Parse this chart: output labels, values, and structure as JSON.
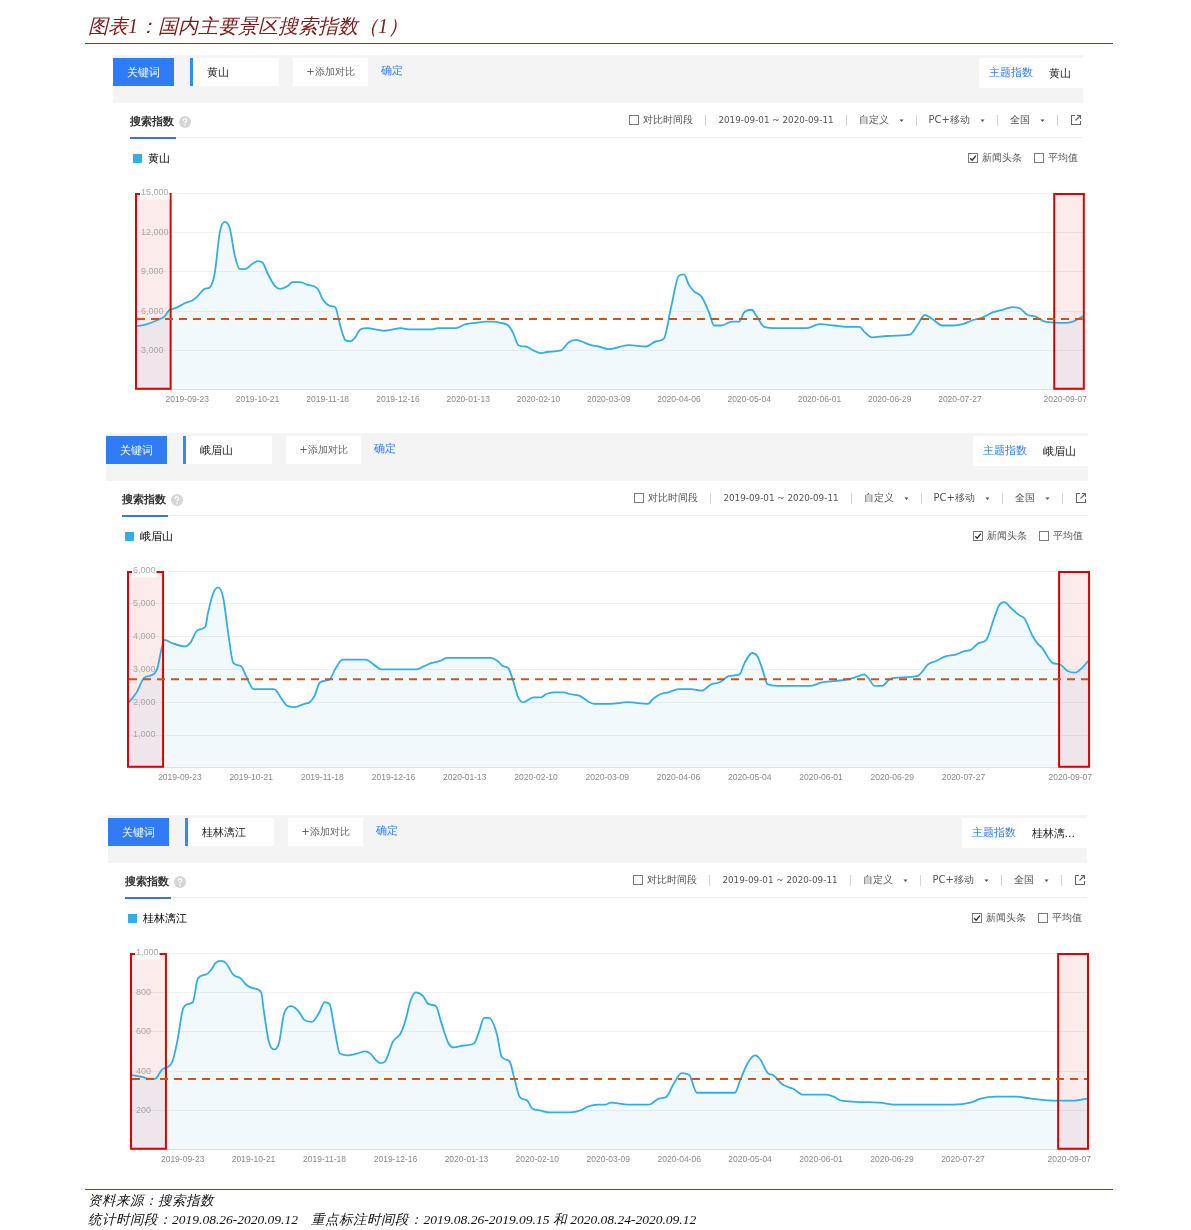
{
  "chart_data": [
    {
      "type": "other",
      "title": "图表1：国内主要景区搜索指数（1）"
    },
    {
      "type": "area",
      "title": "搜索指数",
      "annotations": [
        "关键词",
        "黄山",
        "+添加对比",
        "确定",
        "主题指数",
        "黄山",
        "对比时间段",
        "2019-09-01 ~ 2020-09-11",
        "自定义",
        "PC+移动",
        "全国",
        "新闻头条",
        "平均值"
      ],
      "series": [
        {
          "name": "黄山",
          "color": "#33aee3",
          "x": [
            "2019-09-03",
            "2019-09-07",
            "2019-09-11",
            "2019-09-14",
            "2019-09-16",
            "2019-09-18",
            "2019-09-22",
            "2019-09-25",
            "2019-09-27",
            "2019-09-30",
            "2019-10-02",
            "2019-10-04",
            "2019-10-06",
            "2019-10-08",
            "2019-10-10",
            "2019-10-12",
            "2019-10-14",
            "2019-10-16",
            "2019-10-19",
            "2019-10-21",
            "2019-10-23",
            "2019-10-25",
            "2019-10-28",
            "2019-10-30",
            "2019-11-02",
            "2019-11-04",
            "2019-11-07",
            "2019-11-10",
            "2019-11-14",
            "2019-11-16",
            "2019-11-19",
            "2019-11-21",
            "2019-11-23",
            "2019-11-25",
            "2019-11-27",
            "2019-11-29",
            "2019-12-01",
            "2019-12-04",
            "2019-12-07",
            "2019-12-11",
            "2019-12-14",
            "2019-12-17",
            "2019-12-21",
            "2019-12-25",
            "2019-12-29",
            "2020-01-01",
            "2020-01-08",
            "2020-01-12",
            "2020-01-16",
            "2020-01-20",
            "2020-01-23",
            "2020-01-26",
            "2020-01-29",
            "2020-01-31",
            "2020-02-02",
            "2020-02-05",
            "2020-02-08",
            "2020-02-11",
            "2020-02-14",
            "2020-02-19",
            "2020-02-22",
            "2020-02-25",
            "2020-02-27",
            "2020-03-02",
            "2020-03-05",
            "2020-03-09",
            "2020-03-17",
            "2020-03-24",
            "2020-03-28",
            "2020-03-31",
            "2020-04-03",
            "2020-04-06",
            "2020-04-08",
            "2020-04-10",
            "2020-04-12",
            "2020-04-15",
            "2020-04-18",
            "2020-04-20",
            "2020-04-23",
            "2020-04-27",
            "2020-04-30",
            "2020-05-02",
            "2020-05-05",
            "2020-05-07",
            "2020-05-10",
            "2020-05-15",
            "2020-05-27",
            "2020-06-01",
            "2020-06-07",
            "2020-06-12",
            "2020-06-17",
            "2020-06-19",
            "2020-06-22",
            "2020-06-28",
            "2020-07-07",
            "2020-07-10",
            "2020-07-13",
            "2020-07-16",
            "2020-07-20",
            "2020-07-24",
            "2020-07-28",
            "2020-08-01",
            "2020-08-05",
            "2020-08-09",
            "2020-08-13",
            "2020-08-17",
            "2020-08-20",
            "2020-08-23",
            "2020-08-26",
            "2020-08-30",
            "2020-09-07",
            "2020-09-10",
            "2020-09-14"
          ],
          "values": [
            4850,
            5000,
            5300,
            5600,
            6100,
            6200,
            6600,
            6800,
            7100,
            7700,
            7800,
            8900,
            12000,
            12800,
            12300,
            10200,
            9200,
            9200,
            9600,
            9800,
            9700,
            8900,
            7900,
            7700,
            7900,
            8200,
            8200,
            8000,
            7700,
            6900,
            6400,
            6300,
            4900,
            3800,
            3700,
            4000,
            4600,
            4700,
            4600,
            4500,
            4600,
            4700,
            4600,
            4600,
            4600,
            4700,
            4700,
            5000,
            5100,
            5200,
            5200,
            5100,
            4900,
            4300,
            3400,
            3300,
            3000,
            2800,
            2900,
            3000,
            3600,
            3800,
            3700,
            3400,
            3300,
            3100,
            3400,
            3300,
            3700,
            3900,
            6400,
            8700,
            8800,
            8000,
            7500,
            7100,
            5900,
            4900,
            4900,
            5200,
            5200,
            5900,
            6100,
            5600,
            4800,
            4700,
            4700,
            5000,
            4900,
            4800,
            4800,
            4400,
            4000,
            4100,
            4200,
            4900,
            5700,
            5400,
            4900,
            4900,
            5000,
            5300,
            5500,
            5900,
            6100,
            6300,
            6200,
            5700,
            5600,
            5200,
            5100,
            5200,
            5600
          ]
        }
      ],
      "xlim": [
        "2019-09-03",
        "2020-09-14"
      ],
      "xticks": [
        "2019-09-23",
        "2019-10-21",
        "2019-11-18",
        "2019-12-16",
        "2020-01-13",
        "2020-02-10",
        "2020-03-09",
        "2020-04-06",
        "2020-05-04",
        "2020-06-01",
        "2020-06-29",
        "2020-07-27",
        "2020-09-07"
      ],
      "ylim": [
        0,
        15000
      ],
      "yticks": [
        {
          "value": 3000,
          "label": "3,000"
        },
        {
          "value": 6000,
          "label": "6,000"
        },
        {
          "value": 9000,
          "label": "9,000"
        },
        {
          "value": 12000,
          "label": "12,000"
        },
        {
          "value": 15000,
          "label": "15,000"
        }
      ],
      "grid": "y",
      "legend": "top left",
      "ref_lines": [
        {
          "axis": "y",
          "value": 5400,
          "color": "#cc5414",
          "line_style": "dashed"
        }
      ],
      "bands": [
        {
          "axis": "x",
          "from": "2019-09-03",
          "to": "2019-09-16",
          "color": "#dd0000"
        },
        {
          "axis": "x",
          "from": "2020-09-03",
          "to": "2020-09-14",
          "color": "#dd0000"
        }
      ]
    },
    {
      "type": "area",
      "title": "搜索指数",
      "annotations": [
        "关键词",
        "峨眉山",
        "+添加对比",
        "确定",
        "主题指数",
        "峨眉山",
        "对比时间段",
        "2019-09-01 ~ 2020-09-11",
        "自定义",
        "PC+移动",
        "全国",
        "新闻头条",
        "平均值"
      ],
      "series": [
        {
          "name": "峨眉山",
          "color": "#33aee3",
          "x": [
            "2019-09-03",
            "2019-09-06",
            "2019-09-09",
            "2019-09-11",
            "2019-09-14",
            "2019-09-16",
            "2019-09-17",
            "2019-09-20",
            "2019-09-25",
            "2019-09-27",
            "2019-09-30",
            "2019-10-03",
            "2019-10-04",
            "2019-10-06",
            "2019-10-08",
            "2019-10-10",
            "2019-10-12",
            "2019-10-14",
            "2019-10-17",
            "2019-10-19",
            "2019-10-22",
            "2019-10-26",
            "2019-10-30",
            "2019-11-02",
            "2019-11-04",
            "2019-11-07",
            "2019-11-11",
            "2019-11-13",
            "2019-11-15",
            "2019-11-17",
            "2019-11-21",
            "2019-11-23",
            "2019-11-26",
            "2019-11-30",
            "2019-12-05",
            "2019-12-09",
            "2019-12-11",
            "2019-12-17",
            "2019-12-25",
            "2019-12-28",
            "2019-12-31",
            "2020-01-03",
            "2020-01-06",
            "2020-01-13",
            "2020-01-19",
            "2020-01-23",
            "2020-01-26",
            "2020-01-28",
            "2020-01-30",
            "2020-02-01",
            "2020-02-03",
            "2020-02-05",
            "2020-02-09",
            "2020-02-12",
            "2020-02-14",
            "2020-02-17",
            "2020-02-21",
            "2020-02-23",
            "2020-02-27",
            "2020-03-02",
            "2020-03-04",
            "2020-03-07",
            "2020-03-10",
            "2020-03-17",
            "2020-03-25",
            "2020-03-27",
            "2020-03-30",
            "2020-04-02",
            "2020-04-06",
            "2020-04-11",
            "2020-04-15",
            "2020-04-19",
            "2020-04-22",
            "2020-04-26",
            "2020-04-30",
            "2020-05-02",
            "2020-05-05",
            "2020-05-07",
            "2020-05-09",
            "2020-05-11",
            "2020-05-15",
            "2020-05-22",
            "2020-05-28",
            "2020-06-01",
            "2020-06-07",
            "2020-06-12",
            "2020-06-16",
            "2020-06-18",
            "2020-06-20",
            "2020-06-22",
            "2020-06-25",
            "2020-06-28",
            "2020-07-01",
            "2020-07-09",
            "2020-07-11",
            "2020-07-13",
            "2020-07-16",
            "2020-07-20",
            "2020-07-24",
            "2020-07-27",
            "2020-07-30",
            "2020-08-02",
            "2020-08-05",
            "2020-08-08",
            "2020-08-10",
            "2020-08-12",
            "2020-08-15",
            "2020-08-18",
            "2020-08-20",
            "2020-08-23",
            "2020-08-25",
            "2020-08-27",
            "2020-08-31",
            "2020-09-03",
            "2020-09-06",
            "2020-09-09",
            "2020-09-11",
            "2020-09-14"
          ],
          "values": [
            2000,
            2300,
            2750,
            2800,
            3000,
            3700,
            3900,
            3800,
            3700,
            3800,
            4200,
            4300,
            4700,
            5300,
            5500,
            5200,
            4100,
            3200,
            3100,
            2800,
            2400,
            2400,
            2400,
            2100,
            1900,
            1850,
            1950,
            2000,
            2200,
            2600,
            2700,
            3000,
            3300,
            3300,
            3300,
            3100,
            3000,
            3000,
            3000,
            3100,
            3200,
            3250,
            3350,
            3350,
            3350,
            3350,
            3250,
            3100,
            3050,
            2650,
            2150,
            2000,
            2150,
            2150,
            2250,
            2300,
            2300,
            2250,
            2200,
            2000,
            1950,
            1950,
            1950,
            2000,
            1950,
            2100,
            2250,
            2300,
            2400,
            2400,
            2350,
            2550,
            2600,
            2800,
            2850,
            3200,
            3500,
            3400,
            3000,
            2550,
            2500,
            2500,
            2500,
            2600,
            2650,
            2700,
            2800,
            2850,
            2700,
            2500,
            2500,
            2700,
            2750,
            2800,
            2950,
            3150,
            3250,
            3400,
            3450,
            3550,
            3600,
            3800,
            3900,
            4550,
            4950,
            5050,
            4850,
            4650,
            4550,
            4050,
            3800,
            3650,
            3200,
            3150,
            2950,
            2900,
            3000,
            3250
          ]
        }
      ],
      "xlim": [
        "2019-09-03",
        "2020-09-14"
      ],
      "xticks": [
        "2019-09-23",
        "2019-10-21",
        "2019-11-18",
        "2019-12-16",
        "2020-01-13",
        "2020-02-10",
        "2020-03-09",
        "2020-04-06",
        "2020-05-04",
        "2020-06-01",
        "2020-06-29",
        "2020-07-27",
        "2020-09-07"
      ],
      "ylim": [
        0,
        6000
      ],
      "yticks": [
        {
          "value": 1000,
          "label": "1,000"
        },
        {
          "value": 2000,
          "label": "2,000"
        },
        {
          "value": 3000,
          "label": "3,000"
        },
        {
          "value": 4000,
          "label": "4,000"
        },
        {
          "value": 5000,
          "label": "5,000"
        },
        {
          "value": 6000,
          "label": "6,000"
        }
      ],
      "grid": "y",
      "legend": "top left",
      "ref_lines": [
        {
          "axis": "y",
          "value": 2700,
          "color": "#cc5414",
          "line_style": "dashed"
        }
      ],
      "bands": [
        {
          "axis": "x",
          "from": "2019-09-03",
          "to": "2019-09-16",
          "color": "#dd0000"
        },
        {
          "axis": "x",
          "from": "2020-09-03",
          "to": "2020-09-14",
          "color": "#dd0000"
        }
      ]
    },
    {
      "type": "area",
      "title": "搜索指数",
      "annotations": [
        "关键词",
        "桂林漓江",
        "+添加对比",
        "确定",
        "主题指数",
        "桂林漓...",
        "对比时间段",
        "2019-09-01 ~ 2020-09-11",
        "自定义",
        "PC+移动",
        "全国",
        "新闻头条",
        "平均值"
      ],
      "series": [
        {
          "name": "桂林漓江",
          "color": "#33aee3",
          "x": [
            "2019-09-03",
            "2019-09-07",
            "2019-09-10",
            "2019-09-12",
            "2019-09-15",
            "2019-09-17",
            "2019-09-19",
            "2019-09-21",
            "2019-09-23",
            "2019-09-25",
            "2019-09-27",
            "2019-09-29",
            "2019-10-02",
            "2019-10-04",
            "2019-10-06",
            "2019-10-08",
            "2019-10-10",
            "2019-10-13",
            "2019-10-16",
            "2019-10-18",
            "2019-10-21",
            "2019-10-24",
            "2019-10-25",
            "2019-10-27",
            "2019-10-29",
            "2019-10-31",
            "2019-11-02",
            "2019-11-05",
            "2019-11-08",
            "2019-11-10",
            "2019-11-13",
            "2019-11-16",
            "2019-11-18",
            "2019-11-20",
            "2019-11-22",
            "2019-11-24",
            "2019-11-27",
            "2019-12-01",
            "2019-12-04",
            "2019-12-06",
            "2019-12-08",
            "2019-12-10",
            "2019-12-12",
            "2019-12-15",
            "2019-12-18",
            "2019-12-20",
            "2019-12-22",
            "2019-12-24",
            "2019-12-27",
            "2019-12-29",
            "2020-01-01",
            "2020-01-03",
            "2020-01-06",
            "2020-01-08",
            "2020-01-12",
            "2020-01-16",
            "2020-01-18",
            "2020-01-20",
            "2020-01-22",
            "2020-01-25",
            "2020-01-27",
            "2020-01-30",
            "2020-02-01",
            "2020-02-03",
            "2020-02-06",
            "2020-02-08",
            "2020-02-11",
            "2020-02-15",
            "2020-02-19",
            "2020-02-23",
            "2020-02-27",
            "2020-03-01",
            "2020-03-05",
            "2020-03-08",
            "2020-03-10",
            "2020-03-17",
            "2020-03-25",
            "2020-03-29",
            "2020-04-01",
            "2020-04-04",
            "2020-04-07",
            "2020-04-10",
            "2020-04-13",
            "2020-04-19",
            "2020-04-28",
            "2020-04-30",
            "2020-05-03",
            "2020-05-06",
            "2020-05-08",
            "2020-05-11",
            "2020-05-13",
            "2020-05-17",
            "2020-05-21",
            "2020-05-25",
            "2020-06-03",
            "2020-06-06",
            "2020-06-09",
            "2020-06-24",
            "2020-06-30",
            "2020-07-14",
            "2020-07-23",
            "2020-07-30",
            "2020-08-03",
            "2020-08-09",
            "2020-08-17",
            "2020-08-23",
            "2020-09-02",
            "2020-09-09",
            "2020-09-14"
          ],
          "values": [
            380,
            370,
            360,
            360,
            410,
            420,
            450,
            560,
            710,
            740,
            750,
            870,
            890,
            910,
            950,
            960,
            950,
            890,
            870,
            840,
            820,
            800,
            710,
            550,
            510,
            540,
            690,
            730,
            700,
            660,
            650,
            700,
            750,
            740,
            610,
            490,
            480,
            490,
            500,
            490,
            460,
            440,
            450,
            550,
            590,
            660,
            760,
            800,
            780,
            740,
            730,
            650,
            540,
            520,
            530,
            540,
            600,
            670,
            670,
            590,
            470,
            450,
            360,
            270,
            250,
            210,
            200,
            190,
            190,
            190,
            200,
            220,
            230,
            230,
            240,
            230,
            230,
            260,
            270,
            340,
            390,
            380,
            290,
            290,
            290,
            350,
            440,
            480,
            460,
            390,
            380,
            330,
            310,
            280,
            280,
            270,
            250,
            240,
            230,
            230,
            230,
            240,
            260,
            270,
            270,
            260,
            250,
            250,
            260
          ]
        }
      ],
      "xlim": [
        "2019-09-03",
        "2020-09-14"
      ],
      "xticks": [
        "2019-09-23",
        "2019-10-21",
        "2019-11-18",
        "2019-12-16",
        "2020-01-13",
        "2020-02-10",
        "2020-03-09",
        "2020-04-06",
        "2020-05-04",
        "2020-06-01",
        "2020-06-29",
        "2020-07-27",
        "2020-09-07"
      ],
      "ylim": [
        0,
        1000
      ],
      "yticks": [
        200,
        400,
        600,
        800,
        {
          "value": 1000,
          "label": "1,000"
        }
      ],
      "grid": "y",
      "legend": "top left",
      "ref_lines": [
        {
          "axis": "y",
          "value": 360,
          "color": "#cc5414",
          "line_style": "dashed"
        }
      ],
      "bands": [
        {
          "axis": "x",
          "from": "2019-09-03",
          "to": "2019-09-16",
          "color": "#dd0000"
        },
        {
          "axis": "x",
          "from": "2020-09-03",
          "to": "2020-09-14",
          "color": "#dd0000"
        }
      ]
    },
    {
      "type": "other",
      "annotations": [
        "资料来源：搜索指数",
        "统计时间段：2019.08.26-2020.09.12    重点标注时间段：2019.08.26-2019.09.15 和 2020.08.24-2020.09.12"
      ]
    }
  ]
}
